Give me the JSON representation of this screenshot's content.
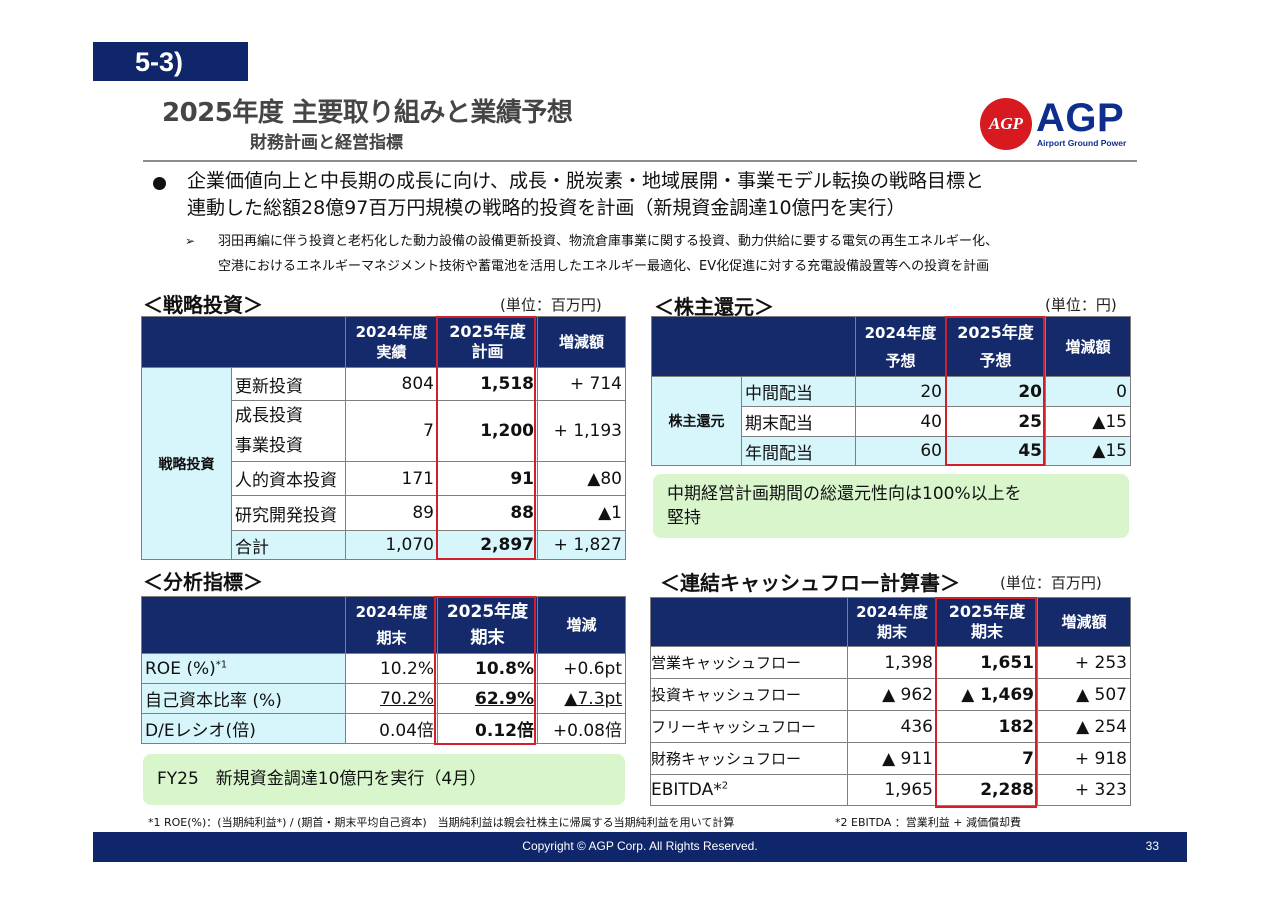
{
  "section": "5-3)",
  "title": "2025年度 主要取り組みと業績予想",
  "subtitle": "財務計画と経営指標",
  "logo": {
    "mark": "AGP",
    "text": "AGP",
    "sub": "Airport Ground Power"
  },
  "bullet": {
    "line1": "企業価値向上と中長期の成長に向け、成長・脱炭素・地域展開・事業モデル転換の戦略目標と",
    "line2": "連動した総額28億97百万円規模の戦略的投資を計画（新規資金調達10億円を実行）"
  },
  "sub_bullet": {
    "line1": "羽田再編に伴う投資と老朽化した動力設備の設備更新投資、物流倉庫事業に関する投資、動力供給に要する電気の再生エネルギー化、",
    "line2": "空港におけるエネルギーマネジメント技術や蓄電池を活用したエネルギー最適化、EV化促進に対する充電設備設置等への投資を計画"
  },
  "strategic": {
    "heading": "＜戦略投資＞",
    "unit": "(単位：百万円)",
    "col1a": "2024年度",
    "col1b": "実績",
    "col2a": "2025年度",
    "col2b": "計画",
    "col3": "増減額",
    "category": "戦略投資",
    "rows": [
      {
        "label": "更新投資",
        "v1": "804",
        "v2": "1,518",
        "diff": "+ 714"
      },
      {
        "label": "成長投資",
        "label2": "事業投資",
        "v1": "7",
        "v2": "1,200",
        "diff": "+ 1,193"
      },
      {
        "label": "人的資本投資",
        "v1": "171",
        "v2": "91",
        "diff": "▲80"
      },
      {
        "label": "研究開発投資",
        "v1": "89",
        "v2": "88",
        "diff": "▲1"
      }
    ],
    "total": {
      "label": "合計",
      "v1": "1,070",
      "v2": "2,897",
      "diff": "+ 1,827"
    }
  },
  "shareholder": {
    "heading": "＜株主還元＞",
    "unit": "(単位：円)",
    "col1a": "2024年度",
    "col1b": "予想",
    "col2a": "2025年度",
    "col2b": "予想",
    "col3": "増減額",
    "category": "株主還元",
    "rows": [
      {
        "label": "中間配当",
        "v1": "20",
        "v2": "20",
        "diff": "0"
      },
      {
        "label": "期末配当",
        "v1": "40",
        "v2": "25",
        "diff": "▲15"
      },
      {
        "label": "年間配当",
        "v1": "60",
        "v2": "45",
        "diff": "▲15"
      }
    ],
    "note_line1": "中期経営計画期間の総還元性向は100%以上を",
    "note_line2": "堅持"
  },
  "analysis": {
    "heading": "＜分析指標＞",
    "col1a": "2024年度",
    "col1b": "期末",
    "col2a": "2025年度",
    "col2b": "期末",
    "col3": "増減",
    "rows": [
      {
        "label": "ROE (%)",
        "sup": "*1",
        "v1": "10.2%",
        "v2": "10.8%",
        "diff": "+0.6pt"
      },
      {
        "label": "自己資本比率 (%)",
        "v1": "70.2%",
        "v2": "62.9%",
        "diff": "▲7.3pt"
      },
      {
        "label": "D/Eレシオ(倍)",
        "v1": "0.04倍",
        "v2": "0.12倍",
        "diff": "+0.08倍"
      }
    ],
    "note": "FY25　新規資金調達10億円を実行（4月）"
  },
  "cashflow": {
    "heading": "＜連結キャッシュフロー計算書＞",
    "unit": "(単位：百万円)",
    "col1a": "2024年度",
    "col1b": "期末",
    "col2a": "2025年度",
    "col2b": "期末",
    "col3": "増減額",
    "rows": [
      {
        "label": "営業キャッシュフロー",
        "v1": "1,398",
        "v2": "1,651",
        "diff": "+ 253"
      },
      {
        "label": "投資キャッシュフロー",
        "v1": "▲ 962",
        "v2": "▲ 1,469",
        "diff": "▲ 507"
      },
      {
        "label": "フリーキャッシュフロー",
        "v1": "436",
        "v2": "182",
        "diff": "▲ 254"
      },
      {
        "label": "財務キャッシュフロー",
        "v1": "▲ 911",
        "v2": "7",
        "diff": "+ 918"
      },
      {
        "label": "EBITDA*",
        "sup": "2",
        "v1": "1,965",
        "v2": "2,288",
        "diff": "+ 323"
      }
    ]
  },
  "footnote1": "*1 ROE(%)：(当期純利益*) / (期首・期末平均自己資本)　当期純利益は親会社株主に帰属する当期純利益を用いて計算",
  "footnote2": "*2 EBITDA ：営業利益 + 減価償却費",
  "footer": {
    "copyright": "Copyright © AGP Corp. All Rights Reserved.",
    "page": "33"
  }
}
